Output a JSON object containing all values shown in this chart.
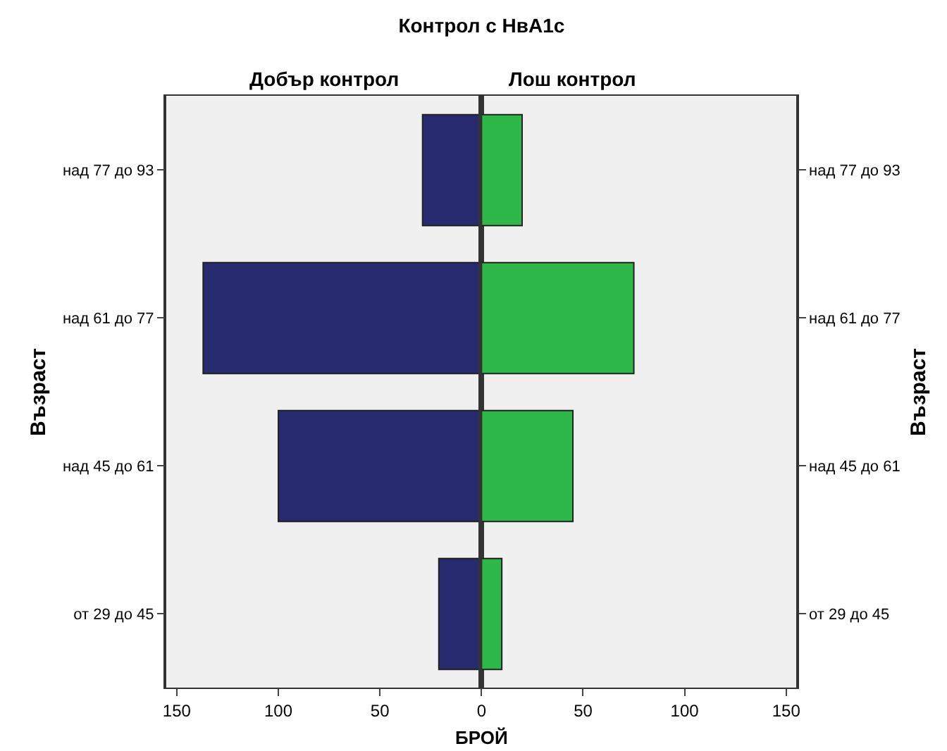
{
  "chart_data": [
    {
      "type": "bar",
      "orientation": "horizontal",
      "title": "Контрол с НвА1с",
      "xlabel": "БРОЙ",
      "ylabel": "Възраст",
      "categories": [
        "над 77 до 93",
        "над 61 до 77",
        "над 45 до 61",
        "от 29 до 45"
      ],
      "series": [
        {
          "name": "Добър контрол",
          "color": "#272a6e",
          "values": [
            29,
            137,
            100,
            21
          ]
        }
      ],
      "xlim": [
        155,
        0
      ],
      "xticks": [
        150,
        100,
        50
      ],
      "grid": false
    },
    {
      "type": "bar",
      "orientation": "horizontal",
      "ylabel": "Възраст",
      "categories": [
        "над 77 до 93",
        "над 61 до 77",
        "над 45 до 61",
        "от 29 до 45"
      ],
      "series": [
        {
          "name": "Лош контрол",
          "color": "#2fb84a",
          "values": [
            20,
            75,
            45,
            10
          ]
        }
      ],
      "xlim": [
        0,
        155
      ],
      "xticks": [
        0,
        50,
        100,
        150
      ],
      "grid": false
    }
  ]
}
